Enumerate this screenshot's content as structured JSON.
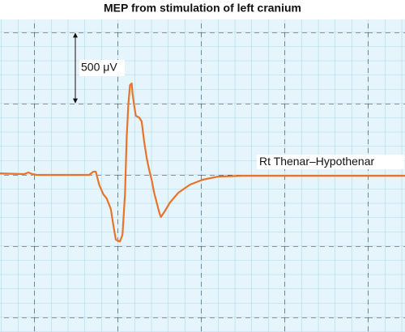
{
  "chart_data": {
    "type": "line",
    "title": "MEP from stimulation of left cranium",
    "x": [
      -0.41,
      -0.12,
      -0.07,
      -0.02,
      0.03,
      0.66,
      0.71,
      0.74,
      0.78,
      0.83,
      0.87,
      0.92,
      0.95,
      0.98,
      1.03,
      1.06,
      1.09,
      1.11,
      1.13,
      1.15,
      1.17,
      1.18,
      1.2,
      1.22,
      1.26,
      1.29,
      1.32,
      1.35,
      1.38,
      1.41,
      1.44,
      1.47,
      1.5,
      1.52,
      1.56,
      1.63,
      1.73,
      1.87,
      2.02,
      2.21,
      2.5,
      4.45
    ],
    "series": [
      {
        "name": "Rt Thenar–Hypothenar",
        "color": "#e8742c",
        "values": [
          11,
          6,
          17,
          6,
          0,
          0,
          23,
          23,
          -68,
          -136,
          -165,
          -239,
          -352,
          -455,
          -466,
          -420,
          -136,
          261,
          489,
          631,
          642,
          574,
          489,
          415,
          403,
          375,
          233,
          119,
          34,
          -34,
          -125,
          -193,
          -261,
          -295,
          -261,
          -193,
          -125,
          -68,
          -34,
          -11,
          -6,
          -6
        ]
      }
    ],
    "xlim": [
      -0.41,
      4.45
    ],
    "ylim": [
      -1102,
      1091
    ],
    "scale_bar": {
      "value": 500,
      "label": "500 μV"
    }
  }
}
